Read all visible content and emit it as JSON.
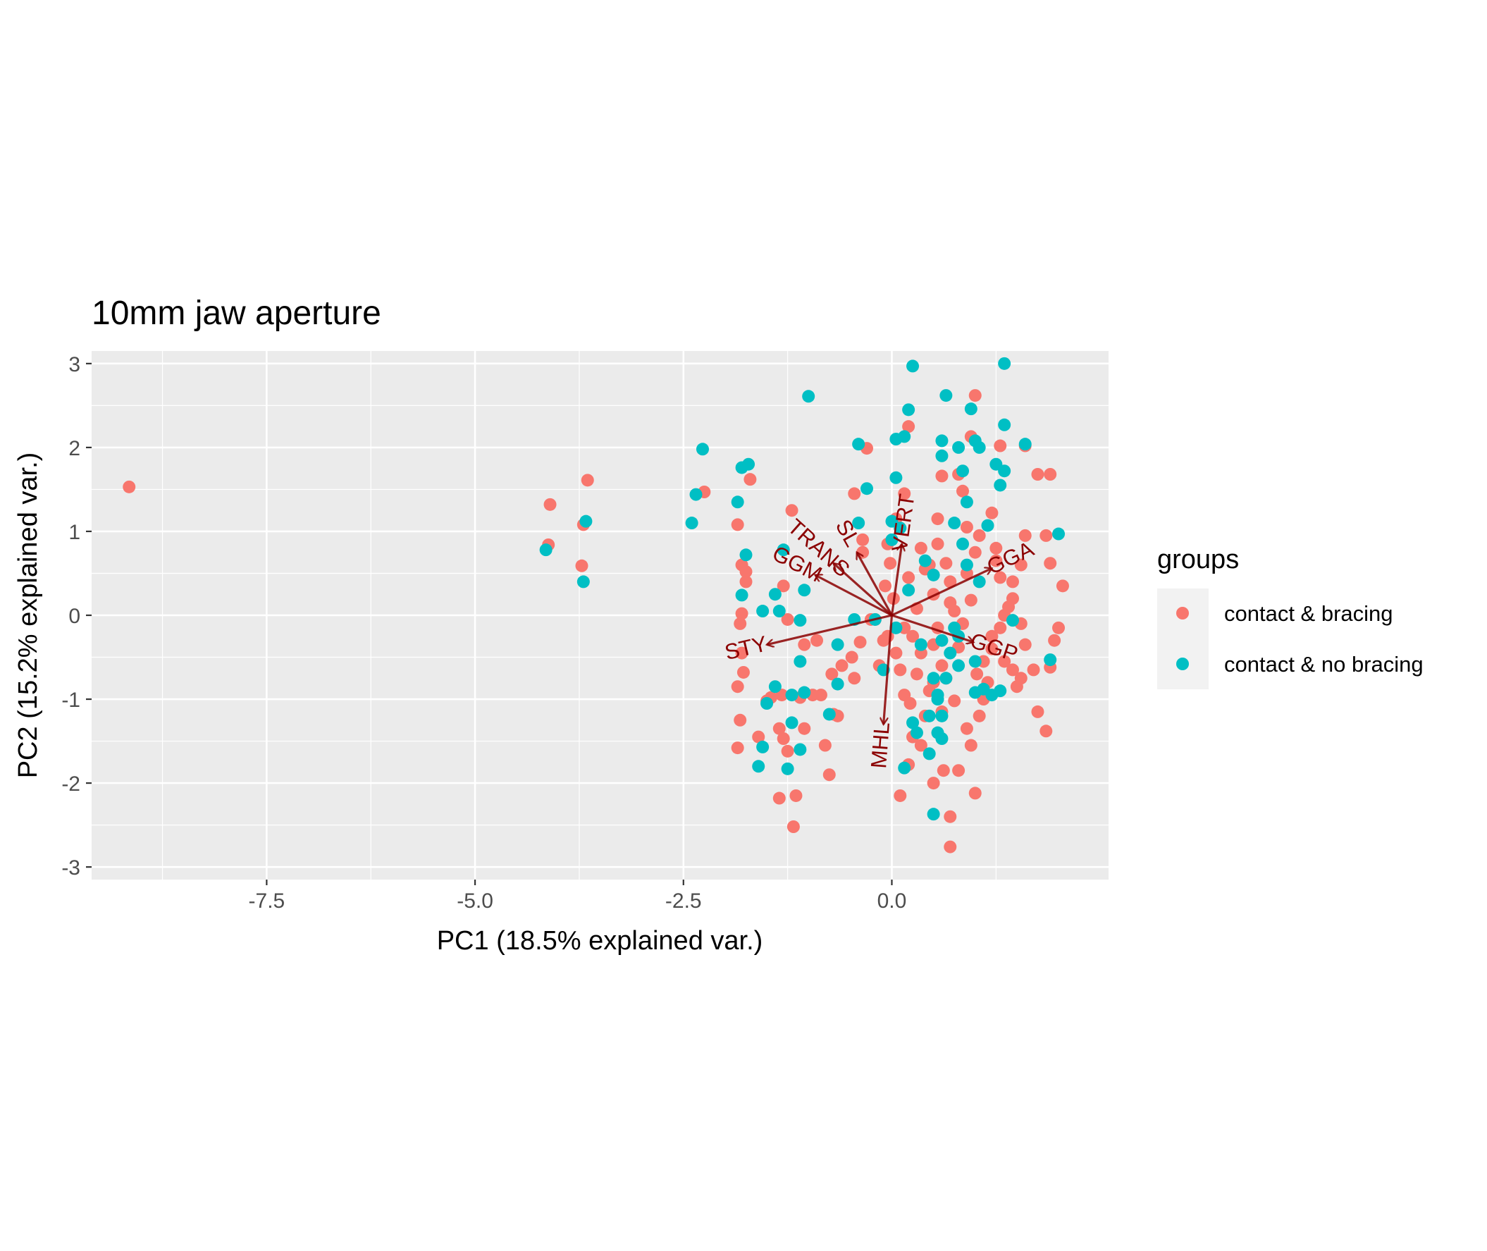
{
  "chart_data": {
    "type": "scatter",
    "title": "10mm jaw aperture",
    "xlabel": "PC1 (18.5% explained var.)",
    "ylabel": "PC2 (15.2% explained var.)",
    "xlim": [
      -9.6,
      2.6
    ],
    "ylim": [
      -3.15,
      3.15
    ],
    "x_ticks": [
      -7.5,
      -5.0,
      -2.5,
      0.0
    ],
    "x_tick_labels": [
      "-7.5",
      "-5.0",
      "-2.5",
      "0.0"
    ],
    "y_ticks": [
      -3,
      -2,
      -1,
      0,
      1,
      2,
      3
    ],
    "y_tick_labels": [
      "-3",
      "-2",
      "-1",
      "0",
      "1",
      "2",
      "3"
    ],
    "grid": true,
    "legend": {
      "title": "groups",
      "position": "right"
    },
    "loading_color": "#8b0000",
    "loadings": [
      {
        "label": "VERT",
        "x": 0.12,
        "y": 0.85
      },
      {
        "label": "SL",
        "x": -0.42,
        "y": 0.75
      },
      {
        "label": "GGM",
        "x": -0.92,
        "y": 0.48
      },
      {
        "label": "TRANS",
        "x": -0.7,
        "y": 0.62
      },
      {
        "label": "GGA",
        "x": 1.2,
        "y": 0.56
      },
      {
        "label": "STY",
        "x": -1.5,
        "y": -0.35
      },
      {
        "label": "GGP",
        "x": 0.98,
        "y": -0.32
      },
      {
        "label": "MHL",
        "x": -0.1,
        "y": -1.3
      }
    ],
    "series": [
      {
        "name": "contact & bracing",
        "color": "#f8766d",
        "points": [
          [
            -9.15,
            1.53
          ],
          [
            -4.1,
            1.32
          ],
          [
            -4.12,
            0.84
          ],
          [
            -3.65,
            1.61
          ],
          [
            -3.7,
            1.08
          ],
          [
            -3.72,
            0.59
          ],
          [
            -2.25,
            1.47
          ],
          [
            -1.7,
            1.62
          ],
          [
            -1.85,
            1.08
          ],
          [
            -1.8,
            0.6
          ],
          [
            -1.75,
            0.4
          ],
          [
            -1.8,
            0.02
          ],
          [
            -1.82,
            -0.1
          ],
          [
            -1.8,
            -0.45
          ],
          [
            -1.78,
            -0.68
          ],
          [
            -1.85,
            -0.85
          ],
          [
            -1.82,
            -1.25
          ],
          [
            -1.85,
            -1.58
          ],
          [
            -1.6,
            -1.45
          ],
          [
            -1.5,
            -1.02
          ],
          [
            -1.45,
            -0.98
          ],
          [
            -1.32,
            -0.95
          ],
          [
            -1.35,
            -1.35
          ],
          [
            -1.3,
            -1.47
          ],
          [
            -1.25,
            -1.62
          ],
          [
            -1.35,
            -2.18
          ],
          [
            -1.15,
            -2.15
          ],
          [
            -1.18,
            -2.52
          ],
          [
            -1.05,
            -1.35
          ],
          [
            -0.95,
            -0.95
          ],
          [
            -0.85,
            -0.95
          ],
          [
            -0.8,
            -1.55
          ],
          [
            -0.75,
            -1.9
          ],
          [
            -0.7,
            -1.18
          ],
          [
            -0.65,
            -1.2
          ],
          [
            -0.72,
            -0.7
          ],
          [
            -0.6,
            -0.6
          ],
          [
            -0.45,
            -0.75
          ],
          [
            -0.48,
            -0.5
          ],
          [
            -0.38,
            -0.32
          ],
          [
            -1.2,
            1.25
          ],
          [
            -0.45,
            1.45
          ],
          [
            -0.3,
            1.99
          ],
          [
            -0.05,
            0.85
          ],
          [
            -0.02,
            0.62
          ],
          [
            -0.08,
            0.35
          ],
          [
            0.02,
            0.2
          ],
          [
            0.2,
            0.45
          ],
          [
            -0.1,
            -0.3
          ],
          [
            -0.15,
            -0.6
          ],
          [
            0.1,
            -0.65
          ],
          [
            0.15,
            -0.95
          ],
          [
            0.22,
            -1.05
          ],
          [
            0.3,
            -0.7
          ],
          [
            0.25,
            -1.45
          ],
          [
            0.2,
            -1.78
          ],
          [
            0.35,
            -1.55
          ],
          [
            0.1,
            -2.15
          ],
          [
            0.5,
            -2.0
          ],
          [
            0.62,
            -1.85
          ],
          [
            0.7,
            -2.4
          ],
          [
            0.7,
            -2.76
          ],
          [
            0.8,
            -1.85
          ],
          [
            0.95,
            -1.55
          ],
          [
            1.0,
            -2.12
          ],
          [
            0.9,
            -1.35
          ],
          [
            1.05,
            -1.2
          ],
          [
            1.1,
            -1.0
          ],
          [
            1.02,
            -0.7
          ],
          [
            1.1,
            -0.55
          ],
          [
            1.2,
            -0.4
          ],
          [
            1.2,
            -0.25
          ],
          [
            1.3,
            -0.15
          ],
          [
            1.35,
            0.0
          ],
          [
            1.4,
            0.1
          ],
          [
            1.45,
            0.4
          ],
          [
            1.55,
            0.6
          ],
          [
            1.6,
            0.95
          ],
          [
            1.75,
            1.68
          ],
          [
            1.6,
            2.02
          ],
          [
            1.3,
            2.02
          ],
          [
            1.0,
            2.62
          ],
          [
            0.95,
            2.13
          ],
          [
            0.8,
            1.68
          ],
          [
            0.85,
            1.48
          ],
          [
            0.6,
            1.66
          ],
          [
            0.55,
            1.15
          ],
          [
            0.55,
            0.85
          ],
          [
            0.65,
            0.62
          ],
          [
            0.7,
            0.4
          ],
          [
            0.7,
            0.15
          ],
          [
            0.85,
            -0.1
          ],
          [
            0.8,
            -0.38
          ],
          [
            0.65,
            -0.75
          ],
          [
            0.6,
            -1.15
          ],
          [
            0.4,
            -1.2
          ],
          [
            0.45,
            0.6
          ],
          [
            0.5,
            0.25
          ],
          [
            0.3,
            0.08
          ],
          [
            0.35,
            -0.45
          ],
          [
            0.5,
            -0.35
          ],
          [
            0.5,
            -0.8
          ],
          [
            1.25,
            0.8
          ],
          [
            1.25,
            0.65
          ],
          [
            1.3,
            0.45
          ],
          [
            1.45,
            0.2
          ],
          [
            1.55,
            -0.1
          ],
          [
            1.6,
            -0.35
          ],
          [
            1.7,
            -0.65
          ],
          [
            1.75,
            -1.15
          ],
          [
            1.85,
            -1.38
          ],
          [
            1.9,
            -0.62
          ],
          [
            1.95,
            -0.3
          ],
          [
            2.0,
            -0.15
          ],
          [
            2.05,
            0.35
          ],
          [
            1.9,
            0.62
          ],
          [
            1.85,
            0.95
          ],
          [
            1.9,
            1.68
          ],
          [
            1.2,
            1.22
          ],
          [
            1.05,
            0.95
          ],
          [
            0.9,
            1.05
          ],
          [
            1.0,
            0.75
          ],
          [
            0.9,
            0.5
          ],
          [
            0.75,
            0.05
          ],
          [
            0.95,
            0.18
          ],
          [
            0.2,
            2.25
          ],
          [
            0.15,
            1.45
          ],
          [
            0.05,
            1.15
          ],
          [
            0.35,
            0.8
          ],
          [
            0.4,
            0.55
          ],
          [
            -0.35,
            0.9
          ],
          [
            -0.35,
            0.75
          ],
          [
            -1.75,
            0.52
          ],
          [
            -1.3,
            0.35
          ],
          [
            -1.25,
            -0.05
          ],
          [
            -1.05,
            -0.35
          ],
          [
            -1.1,
            -0.98
          ],
          [
            -0.9,
            -0.3
          ],
          [
            -0.25,
            -0.05
          ],
          [
            0.05,
            -0.45
          ],
          [
            0.25,
            -0.25
          ],
          [
            0.45,
            -0.9
          ],
          [
            0.6,
            -0.6
          ],
          [
            0.75,
            -1.02
          ],
          [
            1.15,
            -0.8
          ],
          [
            1.35,
            -0.55
          ],
          [
            1.45,
            -0.65
          ],
          [
            1.5,
            -0.85
          ],
          [
            1.55,
            -0.75
          ],
          [
            -0.2,
            -0.05
          ],
          [
            -0.05,
            -0.25
          ],
          [
            0.15,
            -0.15
          ],
          [
            0.55,
            -0.15
          ]
        ]
      },
      {
        "name": "contact & no bracing",
        "color": "#00bfc4",
        "points": [
          [
            -4.15,
            0.78
          ],
          [
            -3.67,
            1.12
          ],
          [
            -3.7,
            0.4
          ],
          [
            -2.4,
            1.1
          ],
          [
            -2.35,
            1.44
          ],
          [
            -2.27,
            1.98
          ],
          [
            -1.85,
            1.35
          ],
          [
            -1.8,
            1.76
          ],
          [
            -1.72,
            1.8
          ],
          [
            -1.75,
            0.72
          ],
          [
            -1.8,
            0.24
          ],
          [
            -1.4,
            0.25
          ],
          [
            -1.35,
            0.05
          ],
          [
            -1.3,
            0.78
          ],
          [
            -1.1,
            -0.06
          ],
          [
            -1.1,
            -0.55
          ],
          [
            -1.2,
            -0.95
          ],
          [
            -1.05,
            -0.92
          ],
          [
            -1.4,
            -0.85
          ],
          [
            -1.5,
            -1.05
          ],
          [
            -1.2,
            -1.28
          ],
          [
            -1.1,
            -1.6
          ],
          [
            -1.25,
            -1.83
          ],
          [
            -1.6,
            -1.8
          ],
          [
            -1.55,
            -1.57
          ],
          [
            -0.65,
            -0.35
          ],
          [
            -0.65,
            -0.82
          ],
          [
            -0.75,
            -1.18
          ],
          [
            -1.0,
            2.61
          ],
          [
            -0.4,
            2.04
          ],
          [
            -0.3,
            1.51
          ],
          [
            -0.4,
            1.1
          ],
          [
            0.15,
            2.13
          ],
          [
            0.05,
            2.1
          ],
          [
            0.2,
            2.45
          ],
          [
            0.25,
            2.97
          ],
          [
            0.65,
            2.62
          ],
          [
            0.6,
            2.08
          ],
          [
            0.6,
            1.9
          ],
          [
            0.05,
            1.64
          ],
          [
            0.0,
            1.12
          ],
          [
            0.1,
            1.04
          ],
          [
            0.95,
            2.46
          ],
          [
            1.0,
            2.08
          ],
          [
            1.05,
            2.0
          ],
          [
            1.35,
            3.0
          ],
          [
            1.35,
            2.27
          ],
          [
            1.6,
            2.04
          ],
          [
            1.35,
            1.72
          ],
          [
            1.25,
            1.8
          ],
          [
            1.3,
            1.55
          ],
          [
            1.15,
            1.07
          ],
          [
            0.85,
            1.72
          ],
          [
            0.8,
            2.0
          ],
          [
            0.9,
            1.35
          ],
          [
            0.75,
            1.1
          ],
          [
            2.0,
            0.97
          ],
          [
            1.45,
            -0.06
          ],
          [
            1.9,
            -0.53
          ],
          [
            1.2,
            -0.95
          ],
          [
            1.1,
            -0.88
          ],
          [
            1.0,
            -0.92
          ],
          [
            1.0,
            -0.55
          ],
          [
            0.8,
            -0.6
          ],
          [
            0.5,
            -0.75
          ],
          [
            0.55,
            -0.95
          ],
          [
            0.45,
            -1.2
          ],
          [
            0.55,
            -1.4
          ],
          [
            0.3,
            -1.4
          ],
          [
            0.25,
            -1.28
          ],
          [
            0.45,
            -1.65
          ],
          [
            0.15,
            -1.82
          ],
          [
            0.5,
            -2.37
          ],
          [
            0.6,
            -1.47
          ],
          [
            0.65,
            -0.75
          ],
          [
            0.6,
            -0.3
          ],
          [
            0.7,
            -0.45
          ],
          [
            0.8,
            -0.25
          ],
          [
            0.85,
            0.85
          ],
          [
            0.4,
            0.65
          ],
          [
            0.2,
            0.3
          ],
          [
            0.5,
            0.48
          ],
          [
            -0.2,
            -0.05
          ],
          [
            -0.1,
            -0.65
          ],
          [
            0.05,
            -0.15
          ],
          [
            1.3,
            -0.9
          ],
          [
            1.05,
            0.4
          ],
          [
            0.35,
            -0.35
          ],
          [
            0.55,
            -1.0
          ],
          [
            0.6,
            -1.2
          ],
          [
            0.75,
            -0.15
          ],
          [
            -0.45,
            -0.05
          ],
          [
            0.0,
            0.9
          ],
          [
            -1.55,
            0.05
          ],
          [
            -1.05,
            0.3
          ],
          [
            0.9,
            0.6
          ]
        ]
      }
    ]
  }
}
